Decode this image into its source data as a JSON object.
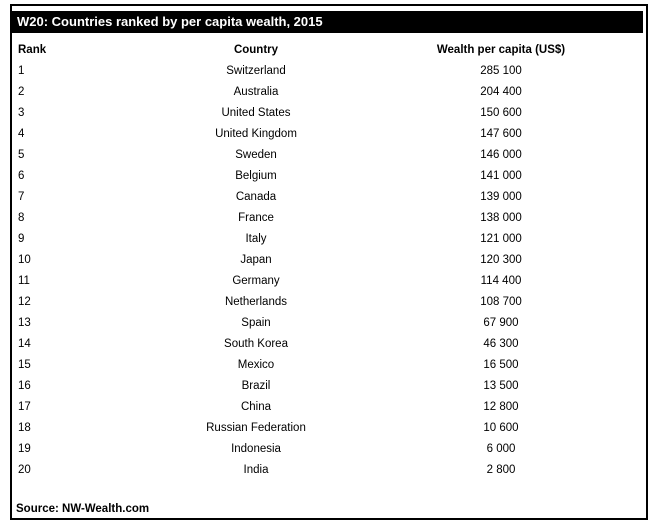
{
  "colors": {
    "title_bg": "#000000",
    "title_fg": "#ffffff",
    "border": "#000000",
    "text": "#000000",
    "page_bg": "#ffffff"
  },
  "chart_data": {
    "type": "table",
    "title": "W20: Countries ranked by per capita wealth, 2015",
    "columns": [
      "Rank",
      "Country",
      "Wealth per capita (US$)"
    ],
    "rows": [
      [
        "1",
        "Switzerland",
        "285 100"
      ],
      [
        "2",
        "Australia",
        "204 400"
      ],
      [
        "3",
        "United States",
        "150 600"
      ],
      [
        "4",
        "United Kingdom",
        "147 600"
      ],
      [
        "5",
        "Sweden",
        "146 000"
      ],
      [
        "6",
        "Belgium",
        "141 000"
      ],
      [
        "7",
        "Canada",
        "139 000"
      ],
      [
        "8",
        "France",
        "138 000"
      ],
      [
        "9",
        "Italy",
        "121 000"
      ],
      [
        "10",
        "Japan",
        "120 300"
      ],
      [
        "11",
        "Germany",
        "114 400"
      ],
      [
        "12",
        "Netherlands",
        "108 700"
      ],
      [
        "13",
        "Spain",
        "67 900"
      ],
      [
        "14",
        "South Korea",
        "46 300"
      ],
      [
        "15",
        "Mexico",
        "16 500"
      ],
      [
        "16",
        "Brazil",
        "13 500"
      ],
      [
        "17",
        "China",
        "12 800"
      ],
      [
        "18",
        "Russian Federation",
        "10 600"
      ],
      [
        "19",
        "Indonesia",
        "6 000"
      ],
      [
        "20",
        "India",
        "2 800"
      ]
    ],
    "source": "Source: NW-Wealth.com",
    "layout": {
      "rank_align": "left",
      "country_align": "center",
      "wealth_align": "center",
      "grid": "off",
      "header_style": "bold"
    }
  }
}
